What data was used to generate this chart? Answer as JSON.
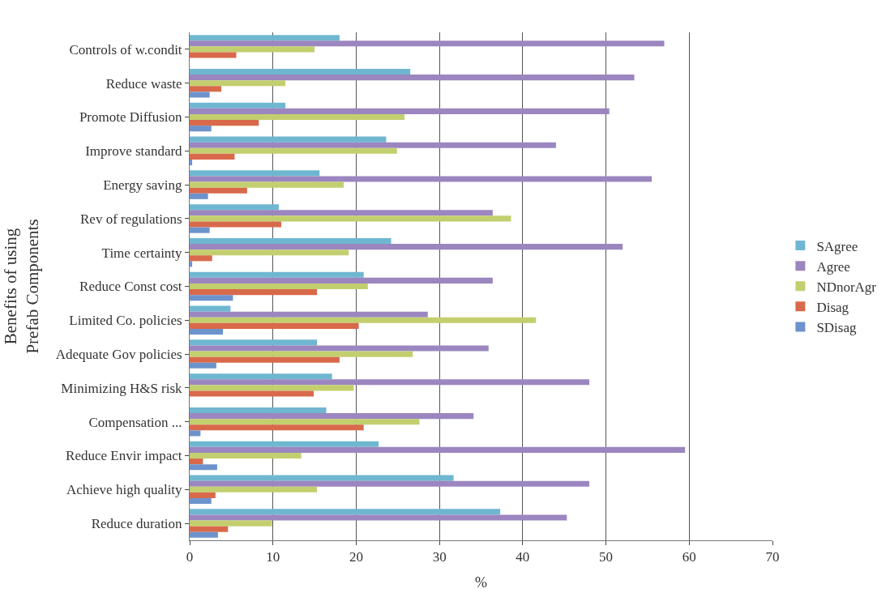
{
  "chart_data": {
    "type": "bar",
    "orientation": "horizontal",
    "ylabel": "Benefits of using Prefab Components",
    "xlabel": "%",
    "categories": [
      "Controls of w.condit",
      "Reduce waste",
      "Promote Diffusion",
      "Improve standard",
      "Energy saving",
      "Rev of regulations",
      "Time certainty",
      "Reduce Const cost",
      "Limited Co. policies",
      "Adequate Gov policies",
      "Minimizing H&S risk",
      "Compensation ...",
      "Reduce Envir impact",
      "Achieve high quality",
      "Reduce duration"
    ],
    "series": [
      {
        "name": "SAgree",
        "color": "#6fb7d0",
        "values": [
          18,
          26.5,
          11.5,
          23.6,
          15.6,
          10.7,
          24.2,
          20.9,
          4.9,
          15.3,
          17.1,
          16.4,
          22.7,
          31.7,
          37.3
        ]
      },
      {
        "name": "Agree",
        "color": "#9b86c0",
        "values": [
          57,
          53.4,
          50.4,
          44,
          55.5,
          36.4,
          52,
          36.4,
          28.6,
          35.9,
          48,
          34.1,
          59.5,
          48,
          45.3
        ]
      },
      {
        "name": "NDnorAgr",
        "color": "#c3cf6e",
        "values": [
          15,
          11.5,
          25.8,
          24.9,
          18.5,
          38.6,
          19.1,
          21.4,
          41.6,
          26.8,
          19.7,
          27.6,
          13.4,
          15.3,
          9.9
        ]
      },
      {
        "name": "Disag",
        "color": "#d9694b",
        "values": [
          5.6,
          3.8,
          8.3,
          5.4,
          6.9,
          11,
          2.7,
          15.3,
          20.3,
          18,
          14.9,
          20.9,
          1.6,
          3.1,
          4.6
        ]
      },
      {
        "name": "SDisag",
        "color": "#6d93cc",
        "values": [
          0,
          2.4,
          2.6,
          0.3,
          2.2,
          2.4,
          0.3,
          5.2,
          4,
          3.2,
          0,
          1.3,
          3.3,
          2.6,
          3.4
        ]
      }
    ],
    "xlim": [
      0,
      70
    ],
    "xticks": [
      0,
      10,
      20,
      30,
      40,
      50,
      60,
      70
    ],
    "grid": "x",
    "legend": "right"
  }
}
